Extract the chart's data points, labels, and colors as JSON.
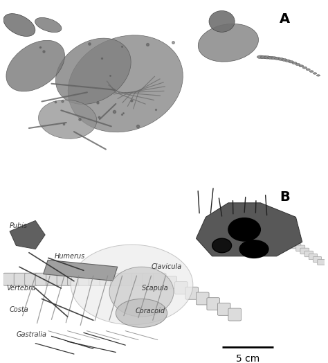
{
  "title": "",
  "panel_A_label": "A",
  "panel_B_label": "B",
  "scale_bar_label": "5 cm",
  "background_color": "#ffffff",
  "label_fontsize": 14,
  "scale_fontsize": 10,
  "fig_width": 4.74,
  "fig_height": 5.24,
  "dpi": 100,
  "colors": {
    "dark_gray": "#555555",
    "mid_gray": "#888888",
    "light_gray": "#cccccc",
    "very_light_gray": "#e0e0e0",
    "black": "#000000",
    "photo_bg": "#c8c8c8",
    "drawing_bg": "#ffffff"
  }
}
